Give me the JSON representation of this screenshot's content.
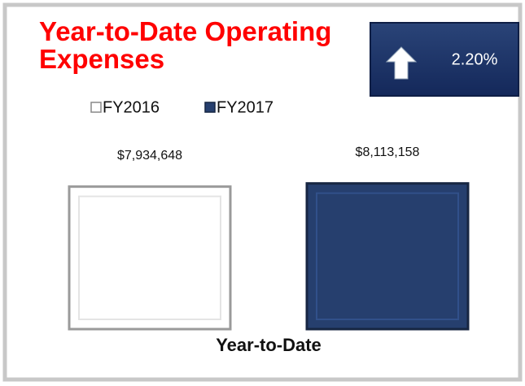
{
  "chart_data": {
    "type": "bar",
    "title": "Year-to-Date Operating Expenses",
    "annotation": "2.20%",
    "categories": [
      "Year-to-Date"
    ],
    "series": [
      {
        "name": "FY2016",
        "color": "#ffffff",
        "values": [
          7934648
        ],
        "value_labels": [
          "$7,934,648"
        ]
      },
      {
        "name": "FY2017",
        "color": "#263f6e",
        "values": [
          8113158
        ],
        "value_labels": [
          "$8,113,158"
        ]
      }
    ],
    "ylim": [
      0,
      10000000
    ]
  }
}
